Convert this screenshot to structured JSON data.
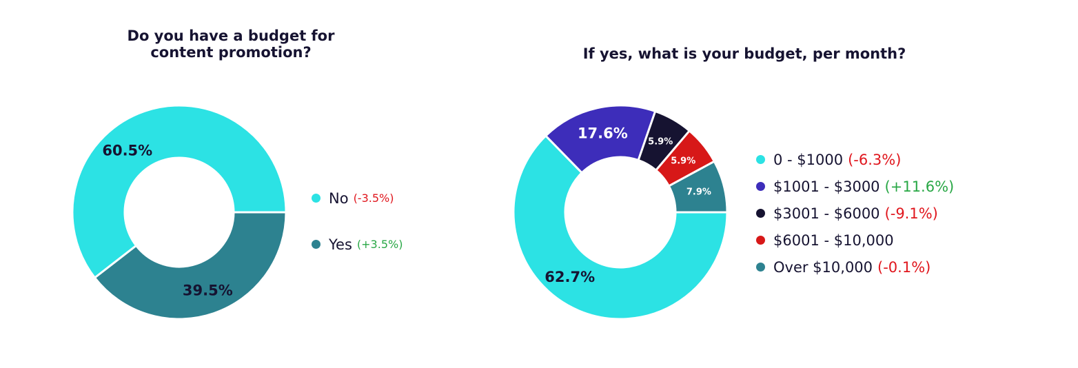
{
  "colors": {
    "cyan": "#2ce2e4",
    "teal": "#2d8290",
    "purple": "#3d2dba",
    "navy": "#161331",
    "red": "#d71818",
    "negative_change": "#e0161d",
    "positive_change": "#28a745"
  },
  "chart_data": [
    {
      "type": "donut",
      "title": "Do you have a budget for\ncontent promotion?",
      "legend_position": "right",
      "series": [
        {
          "name": "No",
          "value": 60.5,
          "label": "60.5%",
          "change": "(-3.5%)",
          "change_sign": "negative",
          "color": "#2ce2e4",
          "label_color": "#161331"
        },
        {
          "name": "Yes",
          "value": 39.5,
          "label": "39.5%",
          "change": "(+3.5%)",
          "change_sign": "positive",
          "color": "#2d8290",
          "label_color": "#161331"
        }
      ]
    },
    {
      "type": "donut",
      "title": "If yes, what is your budget, per month?",
      "legend_position": "right",
      "series": [
        {
          "name": "0 - $1000",
          "value": 62.7,
          "label": "62.7%",
          "change": "(-6.3%)",
          "change_sign": "negative",
          "color": "#2ce2e4",
          "label_color": "#161331"
        },
        {
          "name": "$1001 - $3000",
          "value": 17.6,
          "label": "17.6%",
          "change": "(+11.6%)",
          "change_sign": "positive",
          "color": "#3d2dba",
          "label_color": "#ffffff"
        },
        {
          "name": "$3001 - $6000",
          "value": 5.9,
          "label": "5.9%",
          "change": "(-9.1%)",
          "change_sign": "negative",
          "color": "#161331",
          "label_color": "#ffffff"
        },
        {
          "name": "$6001 - $10,000",
          "value": 5.9,
          "label": "5.9%",
          "change": "",
          "change_sign": "none",
          "color": "#d71818",
          "label_color": "#ffffff"
        },
        {
          "name": "Over $10,000",
          "value": 7.9,
          "label": "7.9%",
          "change": "(-0.1%)",
          "change_sign": "negative",
          "color": "#2d8290",
          "label_color": "#ffffff"
        }
      ]
    }
  ]
}
